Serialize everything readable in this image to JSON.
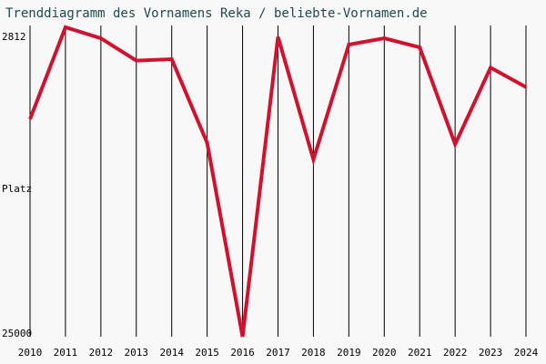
{
  "chart_data": {
    "type": "line",
    "title": "Trenddiagramm des Vornamens Reka / beliebte-Vornamen.de",
    "ylabel": "Platz",
    "categories": [
      "2010",
      "2011",
      "2012",
      "2013",
      "2014",
      "2015",
      "2016",
      "2017",
      "2018",
      "2019",
      "2020",
      "2021",
      "2022",
      "2023",
      "2024"
    ],
    "series": [
      {
        "name": "Reka",
        "color": "#d2112e",
        "values": [
          9400,
          2812,
          3600,
          5200,
          5100,
          11100,
          25000,
          3500,
          12300,
          4050,
          3600,
          4250,
          11200,
          5700,
          7100
        ]
      }
    ],
    "ylim": [
      25000,
      2812
    ],
    "yticks": [
      2812,
      25000
    ],
    "xgrid": true
  }
}
